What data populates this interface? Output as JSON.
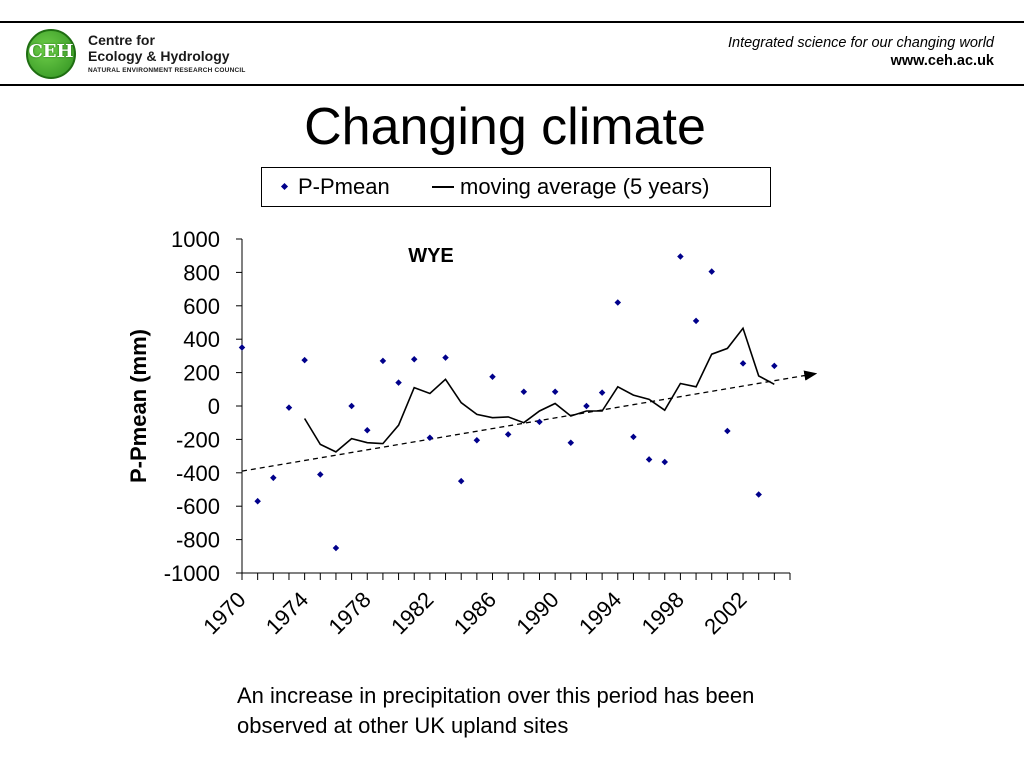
{
  "header": {
    "logo_abbr": "CEH",
    "logo_line1": "Centre for",
    "logo_line2": "Ecology & Hydrology",
    "logo_line3": "NATURAL ENVIRONMENT RESEARCH COUNCIL",
    "tagline": "Integrated science for our changing world",
    "url": "www.ceh.ac.uk"
  },
  "slide": {
    "title": "Changing climate",
    "caption": "An increase in precipitation over this period has been observed at other UK upland sites"
  },
  "legend": {
    "series1": "P-Pmean",
    "series2": "moving average (5 years)"
  },
  "colors": {
    "points": "#00008b",
    "line": "#000000",
    "trend": "#000000"
  },
  "chart_data": {
    "type": "scatter",
    "annotation": "WYE",
    "ylabel": "P-Pmean (mm)",
    "xlabel": "",
    "ylim": [
      -1000,
      1000
    ],
    "yticks": [
      -1000,
      -800,
      -600,
      -400,
      -200,
      0,
      200,
      400,
      600,
      800,
      1000
    ],
    "xlim": [
      1970,
      2005
    ],
    "xtick_labels": [
      "1970",
      "1974",
      "1978",
      "1982",
      "1986",
      "1990",
      "1994",
      "1998",
      "2002"
    ],
    "grid": false,
    "legend_position": "top",
    "series": [
      {
        "name": "P-Pmean",
        "kind": "scatter",
        "x": [
          1970,
          1971,
          1972,
          1973,
          1974,
          1975,
          1976,
          1977,
          1978,
          1979,
          1980,
          1981,
          1982,
          1983,
          1984,
          1985,
          1986,
          1987,
          1988,
          1989,
          1990,
          1991,
          1992,
          1993,
          1994,
          1995,
          1996,
          1997,
          1998,
          1999,
          2000,
          2001,
          2002,
          2003,
          2004
        ],
        "y": [
          350,
          -570,
          -430,
          -10,
          275,
          -410,
          -850,
          0,
          -145,
          270,
          140,
          280,
          -190,
          290,
          -450,
          -205,
          175,
          -170,
          85,
          -95,
          85,
          -220,
          0,
          80,
          620,
          -185,
          -320,
          -335,
          895,
          510,
          805,
          -150,
          255,
          -530,
          240
        ]
      },
      {
        "name": "moving average (5 years)",
        "kind": "line",
        "x": [
          1974,
          1975,
          1976,
          1977,
          1978,
          1979,
          1980,
          1981,
          1982,
          1983,
          1984,
          1985,
          1986,
          1987,
          1988,
          1989,
          1990,
          1991,
          1992,
          1993,
          1994,
          1995,
          1996,
          1997,
          1998,
          1999,
          2000,
          2001,
          2002,
          2003,
          2004
        ],
        "y": [
          -75,
          -230,
          -275,
          -195,
          -220,
          -225,
          -115,
          110,
          75,
          160,
          20,
          -50,
          -70,
          -65,
          -100,
          -30,
          15,
          -60,
          -30,
          -30,
          115,
          65,
          40,
          -25,
          135,
          115,
          310,
          345,
          465,
          180,
          130
        ]
      },
      {
        "name": "",
        "kind": "trend",
        "x": [
          1970,
          2005
        ],
        "y": [
          -390,
          170
        ]
      }
    ]
  }
}
